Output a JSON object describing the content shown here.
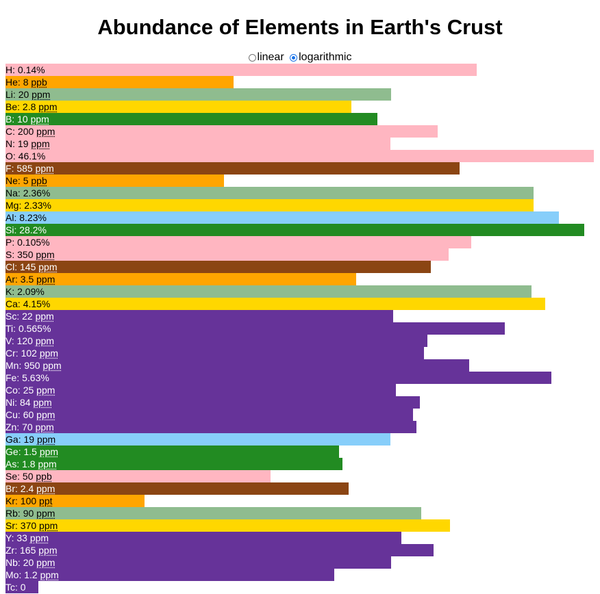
{
  "title": "Abundance of Elements in Earth's Crust",
  "scale_toggle": {
    "options": [
      {
        "label": "linear",
        "checked": false
      },
      {
        "label": "logarithmic",
        "checked": true
      }
    ]
  },
  "colors": {
    "pink": "#ffb6c1",
    "orange": "#ffa500",
    "sage": "#8fbc8f",
    "gold": "#ffd700",
    "green": "#228b22",
    "brown": "#8b4513",
    "lightblue": "#87cefa",
    "purple": "#663399"
  },
  "chart_data": {
    "type": "bar",
    "orientation": "horizontal",
    "title": "Abundance of Elements in Earth's Crust",
    "scale": "logarithmic",
    "unit": "mass fraction",
    "xlim": [
      1e-13,
      0.461
    ],
    "categories": [
      "H",
      "He",
      "Li",
      "Be",
      "B",
      "C",
      "N",
      "O",
      "F",
      "Ne",
      "Na",
      "Mg",
      "Al",
      "Si",
      "P",
      "S",
      "Cl",
      "Ar",
      "K",
      "Ca",
      "Sc",
      "Ti",
      "V",
      "Cr",
      "Mn",
      "Fe",
      "Co",
      "Ni",
      "Cu",
      "Zn",
      "Ga",
      "Ge",
      "As",
      "Se",
      "Br",
      "Kr",
      "Rb",
      "Sr",
      "Y",
      "Zr",
      "Nb",
      "Mo",
      "Tc"
    ],
    "series": [
      {
        "values": [
          0.0014,
          8e-09,
          2e-05,
          2.8e-06,
          1e-05,
          0.0002,
          1.9e-05,
          0.461,
          0.000585,
          5e-09,
          0.0236,
          0.0233,
          0.0823,
          0.282,
          0.00105,
          0.00035,
          0.000145,
          3.5e-06,
          0.0209,
          0.0415,
          2.2e-05,
          0.00565,
          0.00012,
          0.000102,
          0.00095,
          0.0563,
          2.5e-05,
          8.4e-05,
          6e-05,
          7e-05,
          1.9e-05,
          1.5e-06,
          1.8e-06,
          5e-08,
          2.4e-06,
          1e-10,
          9e-05,
          0.00037,
          3.3e-05,
          0.000165,
          2e-05,
          1.2e-06,
          0
        ]
      }
    ],
    "labels": [
      {
        "el": "H",
        "num": "0.14%",
        "unit": "",
        "color": "pink"
      },
      {
        "el": "He",
        "num": "8",
        "unit": "ppb",
        "color": "orange"
      },
      {
        "el": "Li",
        "num": "20",
        "unit": "ppm",
        "color": "sage"
      },
      {
        "el": "Be",
        "num": "2.8",
        "unit": "ppm",
        "color": "gold"
      },
      {
        "el": "B",
        "num": "10",
        "unit": "ppm",
        "color": "green"
      },
      {
        "el": "C",
        "num": "200",
        "unit": "ppm",
        "color": "pink"
      },
      {
        "el": "N",
        "num": "19",
        "unit": "ppm",
        "color": "pink"
      },
      {
        "el": "O",
        "num": "46.1%",
        "unit": "",
        "color": "pink"
      },
      {
        "el": "F",
        "num": "585",
        "unit": "ppm",
        "color": "brown"
      },
      {
        "el": "Ne",
        "num": "5",
        "unit": "ppb",
        "color": "orange"
      },
      {
        "el": "Na",
        "num": "2.36%",
        "unit": "",
        "color": "sage"
      },
      {
        "el": "Mg",
        "num": "2.33%",
        "unit": "",
        "color": "gold"
      },
      {
        "el": "Al",
        "num": "8.23%",
        "unit": "",
        "color": "lightblue"
      },
      {
        "el": "Si",
        "num": "28.2%",
        "unit": "",
        "color": "green"
      },
      {
        "el": "P",
        "num": "0.105%",
        "unit": "",
        "color": "pink"
      },
      {
        "el": "S",
        "num": "350",
        "unit": "ppm",
        "color": "pink"
      },
      {
        "el": "Cl",
        "num": "145",
        "unit": "ppm",
        "color": "brown"
      },
      {
        "el": "Ar",
        "num": "3.5",
        "unit": "ppm",
        "color": "orange"
      },
      {
        "el": "K",
        "num": "2.09%",
        "unit": "",
        "color": "sage"
      },
      {
        "el": "Ca",
        "num": "4.15%",
        "unit": "",
        "color": "gold"
      },
      {
        "el": "Sc",
        "num": "22",
        "unit": "ppm",
        "color": "purple"
      },
      {
        "el": "Ti",
        "num": "0.565%",
        "unit": "",
        "color": "purple"
      },
      {
        "el": "V",
        "num": "120",
        "unit": "ppm",
        "color": "purple"
      },
      {
        "el": "Cr",
        "num": "102",
        "unit": "ppm",
        "color": "purple"
      },
      {
        "el": "Mn",
        "num": "950",
        "unit": "ppm",
        "color": "purple"
      },
      {
        "el": "Fe",
        "num": "5.63%",
        "unit": "",
        "color": "purple"
      },
      {
        "el": "Co",
        "num": "25",
        "unit": "ppm",
        "color": "purple"
      },
      {
        "el": "Ni",
        "num": "84",
        "unit": "ppm",
        "color": "purple"
      },
      {
        "el": "Cu",
        "num": "60",
        "unit": "ppm",
        "color": "purple"
      },
      {
        "el": "Zn",
        "num": "70",
        "unit": "ppm",
        "color": "purple"
      },
      {
        "el": "Ga",
        "num": "19",
        "unit": "ppm",
        "color": "lightblue"
      },
      {
        "el": "Ge",
        "num": "1.5",
        "unit": "ppm",
        "color": "green"
      },
      {
        "el": "As",
        "num": "1.8",
        "unit": "ppm",
        "color": "green"
      },
      {
        "el": "Se",
        "num": "50",
        "unit": "ppb",
        "color": "pink"
      },
      {
        "el": "Br",
        "num": "2.4",
        "unit": "ppm",
        "color": "brown"
      },
      {
        "el": "Kr",
        "num": "100",
        "unit": "ppt",
        "color": "orange"
      },
      {
        "el": "Rb",
        "num": "90",
        "unit": "ppm",
        "color": "sage"
      },
      {
        "el": "Sr",
        "num": "370",
        "unit": "ppm",
        "color": "gold"
      },
      {
        "el": "Y",
        "num": "33",
        "unit": "ppm",
        "color": "purple"
      },
      {
        "el": "Zr",
        "num": "165",
        "unit": "ppm",
        "color": "purple"
      },
      {
        "el": "Nb",
        "num": "20",
        "unit": "ppm",
        "color": "purple"
      },
      {
        "el": "Mo",
        "num": "1.2",
        "unit": "ppm",
        "color": "purple"
      },
      {
        "el": "Tc",
        "num": "0",
        "unit": "",
        "color": "purple"
      }
    ]
  }
}
